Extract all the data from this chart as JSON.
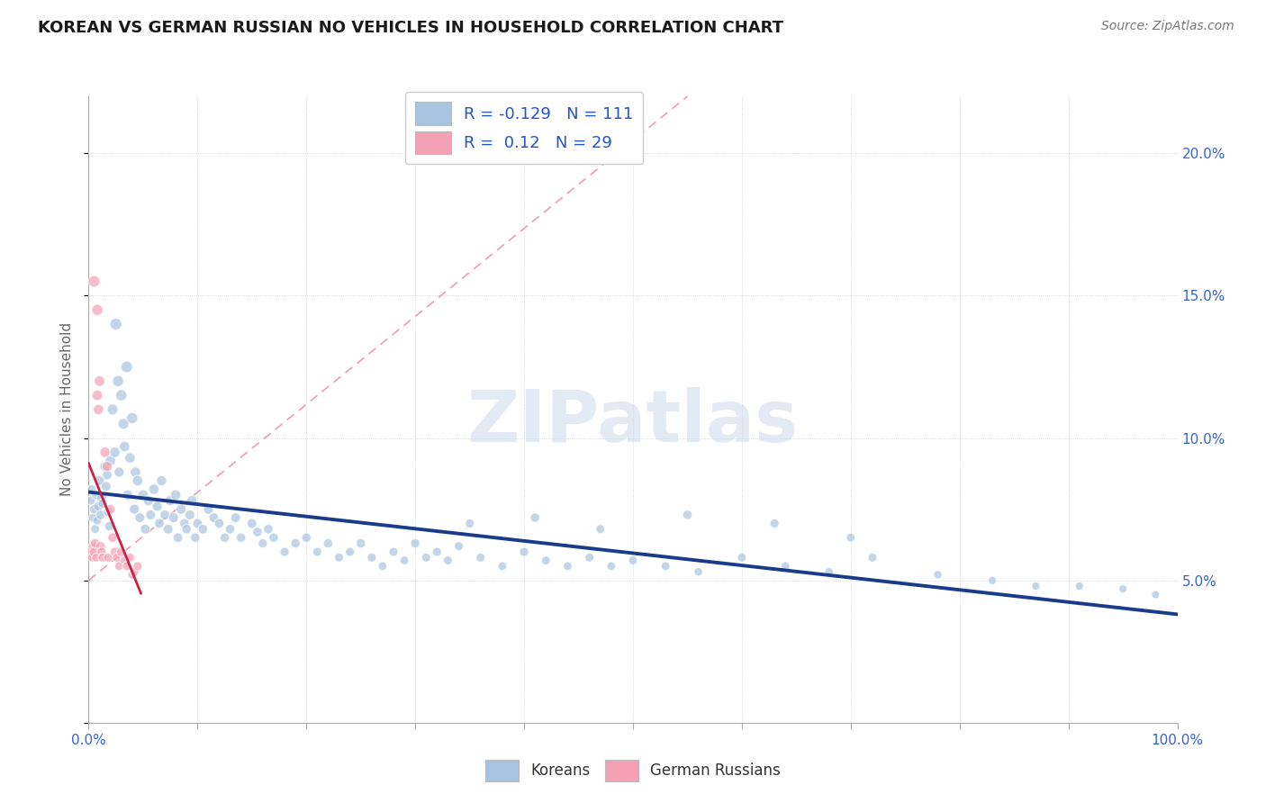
{
  "title": "KOREAN VS GERMAN RUSSIAN NO VEHICLES IN HOUSEHOLD CORRELATION CHART",
  "source": "Source: ZipAtlas.com",
  "ylabel": "No Vehicles in Household",
  "xlim": [
    0,
    1.0
  ],
  "ylim": [
    0,
    0.22
  ],
  "korean_R": -0.129,
  "korean_N": 111,
  "german_russian_R": 0.12,
  "german_russian_N": 29,
  "korean_color": "#a8c4e0",
  "korean_line_color": "#1a3a8a",
  "german_russian_color": "#f4a0b5",
  "german_russian_line_color": "#cc2244",
  "watermark_text": "ZIPatlas",
  "diag_line_color": "#f0a0b0",
  "korean_x": [
    0.002,
    0.003,
    0.004,
    0.005,
    0.006,
    0.007,
    0.008,
    0.009,
    0.01,
    0.011,
    0.012,
    0.013,
    0.015,
    0.016,
    0.017,
    0.018,
    0.019,
    0.02,
    0.022,
    0.024,
    0.025,
    0.027,
    0.028,
    0.03,
    0.032,
    0.033,
    0.035,
    0.036,
    0.038,
    0.04,
    0.042,
    0.043,
    0.045,
    0.047,
    0.05,
    0.052,
    0.055,
    0.057,
    0.06,
    0.063,
    0.065,
    0.067,
    0.07,
    0.073,
    0.075,
    0.078,
    0.08,
    0.082,
    0.085,
    0.088,
    0.09,
    0.093,
    0.095,
    0.098,
    0.1,
    0.105,
    0.11,
    0.115,
    0.12,
    0.125,
    0.13,
    0.135,
    0.14,
    0.15,
    0.155,
    0.16,
    0.165,
    0.17,
    0.18,
    0.19,
    0.2,
    0.21,
    0.22,
    0.23,
    0.24,
    0.25,
    0.26,
    0.27,
    0.28,
    0.29,
    0.3,
    0.31,
    0.32,
    0.33,
    0.34,
    0.36,
    0.38,
    0.4,
    0.42,
    0.44,
    0.46,
    0.48,
    0.5,
    0.53,
    0.56,
    0.6,
    0.64,
    0.68,
    0.72,
    0.78,
    0.83,
    0.87,
    0.91,
    0.95,
    0.98,
    0.35,
    0.41,
    0.47,
    0.55,
    0.63,
    0.7
  ],
  "korean_y": [
    0.078,
    0.082,
    0.072,
    0.075,
    0.068,
    0.08,
    0.071,
    0.076,
    0.085,
    0.073,
    0.079,
    0.077,
    0.09,
    0.083,
    0.087,
    0.074,
    0.069,
    0.092,
    0.11,
    0.095,
    0.14,
    0.12,
    0.088,
    0.115,
    0.105,
    0.097,
    0.125,
    0.08,
    0.093,
    0.107,
    0.075,
    0.088,
    0.085,
    0.072,
    0.08,
    0.068,
    0.078,
    0.073,
    0.082,
    0.076,
    0.07,
    0.085,
    0.073,
    0.068,
    0.078,
    0.072,
    0.08,
    0.065,
    0.075,
    0.07,
    0.068,
    0.073,
    0.078,
    0.065,
    0.07,
    0.068,
    0.075,
    0.072,
    0.07,
    0.065,
    0.068,
    0.072,
    0.065,
    0.07,
    0.067,
    0.063,
    0.068,
    0.065,
    0.06,
    0.063,
    0.065,
    0.06,
    0.063,
    0.058,
    0.06,
    0.063,
    0.058,
    0.055,
    0.06,
    0.057,
    0.063,
    0.058,
    0.06,
    0.057,
    0.062,
    0.058,
    0.055,
    0.06,
    0.057,
    0.055,
    0.058,
    0.055,
    0.057,
    0.055,
    0.053,
    0.058,
    0.055,
    0.053,
    0.058,
    0.052,
    0.05,
    0.048,
    0.048,
    0.047,
    0.045,
    0.07,
    0.072,
    0.068,
    0.073,
    0.07,
    0.065
  ],
  "korean_size": [
    50,
    50,
    50,
    55,
    50,
    55,
    50,
    55,
    60,
    55,
    60,
    55,
    65,
    60,
    60,
    55,
    55,
    70,
    75,
    70,
    90,
    80,
    65,
    80,
    75,
    70,
    85,
    65,
    70,
    78,
    65,
    68,
    70,
    62,
    68,
    60,
    65,
    62,
    68,
    63,
    60,
    65,
    62,
    60,
    65,
    62,
    67,
    58,
    63,
    60,
    58,
    62,
    65,
    58,
    60,
    58,
    63,
    60,
    58,
    55,
    58,
    60,
    55,
    60,
    57,
    53,
    58,
    55,
    52,
    55,
    55,
    52,
    55,
    50,
    52,
    55,
    50,
    48,
    52,
    50,
    55,
    50,
    52,
    50,
    53,
    50,
    48,
    52,
    50,
    48,
    50,
    48,
    50,
    48,
    45,
    50,
    48,
    45,
    50,
    45,
    43,
    42,
    42,
    42,
    40,
    52,
    55,
    50,
    55,
    52,
    48
  ],
  "german_russian_x": [
    0.002,
    0.003,
    0.004,
    0.005,
    0.006,
    0.007,
    0.008,
    0.009,
    0.01,
    0.011,
    0.012,
    0.013,
    0.015,
    0.017,
    0.018,
    0.02,
    0.022,
    0.024,
    0.026,
    0.028,
    0.03,
    0.033,
    0.035,
    0.038,
    0.04,
    0.042,
    0.045,
    0.005,
    0.008
  ],
  "german_russian_y": [
    0.06,
    0.058,
    0.062,
    0.06,
    0.063,
    0.058,
    0.115,
    0.11,
    0.12,
    0.062,
    0.06,
    0.058,
    0.095,
    0.09,
    0.058,
    0.075,
    0.065,
    0.06,
    0.058,
    0.055,
    0.06,
    0.057,
    0.055,
    0.058,
    0.052,
    0.053,
    0.055,
    0.155,
    0.145
  ],
  "german_russian_size": [
    55,
    50,
    55,
    60,
    55,
    50,
    70,
    68,
    72,
    58,
    55,
    52,
    68,
    65,
    52,
    62,
    58,
    55,
    52,
    50,
    55,
    52,
    50,
    52,
    48,
    50,
    52,
    85,
    80
  ]
}
